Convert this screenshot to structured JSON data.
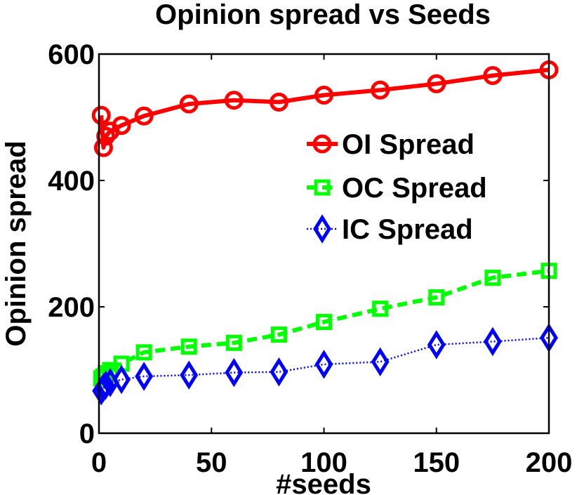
{
  "chart_data": {
    "type": "line",
    "title": "Opinion spread vs Seeds",
    "xlabel": "#seeds",
    "ylabel": "Opinion spread",
    "xlim": [
      0,
      200
    ],
    "ylim": [
      0,
      600
    ],
    "xticks": [
      0,
      50,
      100,
      150,
      200
    ],
    "yticks": [
      0,
      200,
      400,
      600
    ],
    "grid": false,
    "legend_position": "top-right",
    "x": [
      1,
      2,
      3,
      5,
      10,
      20,
      40,
      60,
      80,
      100,
      125,
      150,
      175,
      200
    ],
    "series": [
      {
        "name": "OI Spread",
        "color": "#ff0000",
        "line_style": "solid",
        "marker": "circle",
        "values": [
          503,
          452,
          470,
          478,
          487,
          502,
          521,
          527,
          524,
          535,
          543,
          553,
          566,
          575
        ]
      },
      {
        "name": "OC Spread",
        "color": "#00ff00",
        "line_style": "dashed",
        "marker": "square",
        "values": [
          87,
          90,
          95,
          100,
          110,
          128,
          137,
          143,
          156,
          176,
          197,
          215,
          246,
          257
        ]
      },
      {
        "name": "IC Spread",
        "color": "#0000ff",
        "line_style": "dotted",
        "marker": "diamond",
        "values": [
          67,
          72,
          76,
          80,
          85,
          90,
          92,
          96,
          97,
          109,
          113,
          140,
          145,
          151
        ]
      }
    ]
  }
}
